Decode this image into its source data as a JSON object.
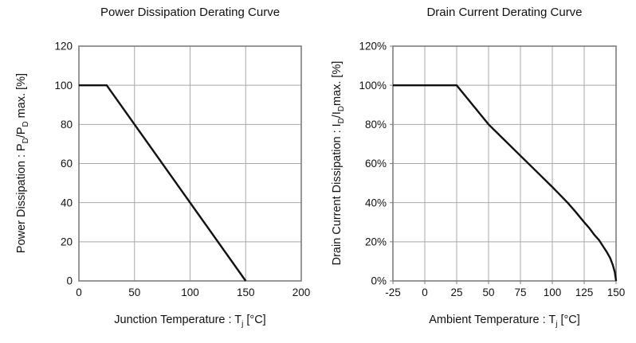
{
  "figure": {
    "background": "#ffffff"
  },
  "colors": {
    "grid": "#a8a8a8",
    "border": "#7d7d7d",
    "text": "#111111",
    "curve": "#111111"
  },
  "chart_data": [
    {
      "id": "power-dissipation-derating",
      "type": "line",
      "title": "Power Dissipation Derating Curve",
      "xlabel": "Junction Temperature : T_{j} [°C]",
      "ylabel": "Power Dissipation : P_{D}/P_{D} max. [%]",
      "xlim": [
        0,
        200
      ],
      "ylim": [
        0,
        120
      ],
      "xticks": [
        0,
        50,
        100,
        150,
        200
      ],
      "xtick_labels": [
        "0",
        "50",
        "100",
        "150",
        "200"
      ],
      "yticks": [
        0,
        20,
        40,
        60,
        80,
        100,
        120
      ],
      "ytick_labels": [
        "0",
        "20",
        "40",
        "60",
        "80",
        "100",
        "120"
      ],
      "grid": true,
      "axis_tick_stubs": false,
      "legend": "none",
      "series": [
        {
          "name": "power-dissipation-curve",
          "x": [
            0,
            25,
            150
          ],
          "y": [
            100,
            100,
            0
          ]
        }
      ]
    },
    {
      "id": "drain-current-derating",
      "type": "line",
      "title": "Drain Current Derating Curve",
      "xlabel": "Ambient Temperature : T_{j} [°C]",
      "ylabel": "Drain Current Dissipation : I_{D}/I_{D}max. [%]",
      "xlim": [
        -25,
        150
      ],
      "ylim": [
        0,
        120
      ],
      "xticks": [
        -25,
        0,
        25,
        50,
        75,
        100,
        125,
        150
      ],
      "xtick_labels": [
        "-25",
        "0",
        "25",
        "50",
        "75",
        "100",
        "125",
        "150"
      ],
      "yticks": [
        0,
        20,
        40,
        60,
        80,
        100,
        120
      ],
      "ytick_labels": [
        "0%",
        "20%",
        "40%",
        "60%",
        "80%",
        "100%",
        "120%"
      ],
      "grid": true,
      "axis_tick_stubs": true,
      "legend": "none",
      "series": [
        {
          "name": "drain-current-curve",
          "x": [
            -25,
            25,
            50,
            62.5,
            75,
            87.5,
            100,
            106,
            112,
            118,
            125,
            129,
            133,
            136.5,
            140,
            143,
            145.5,
            147.5,
            149,
            150
          ],
          "y": [
            100,
            100,
            80,
            72,
            64,
            56,
            48,
            44,
            40,
            35.5,
            30,
            27,
            23.5,
            21,
            17.5,
            14.5,
            11.5,
            8,
            4.5,
            0
          ]
        }
      ]
    }
  ]
}
